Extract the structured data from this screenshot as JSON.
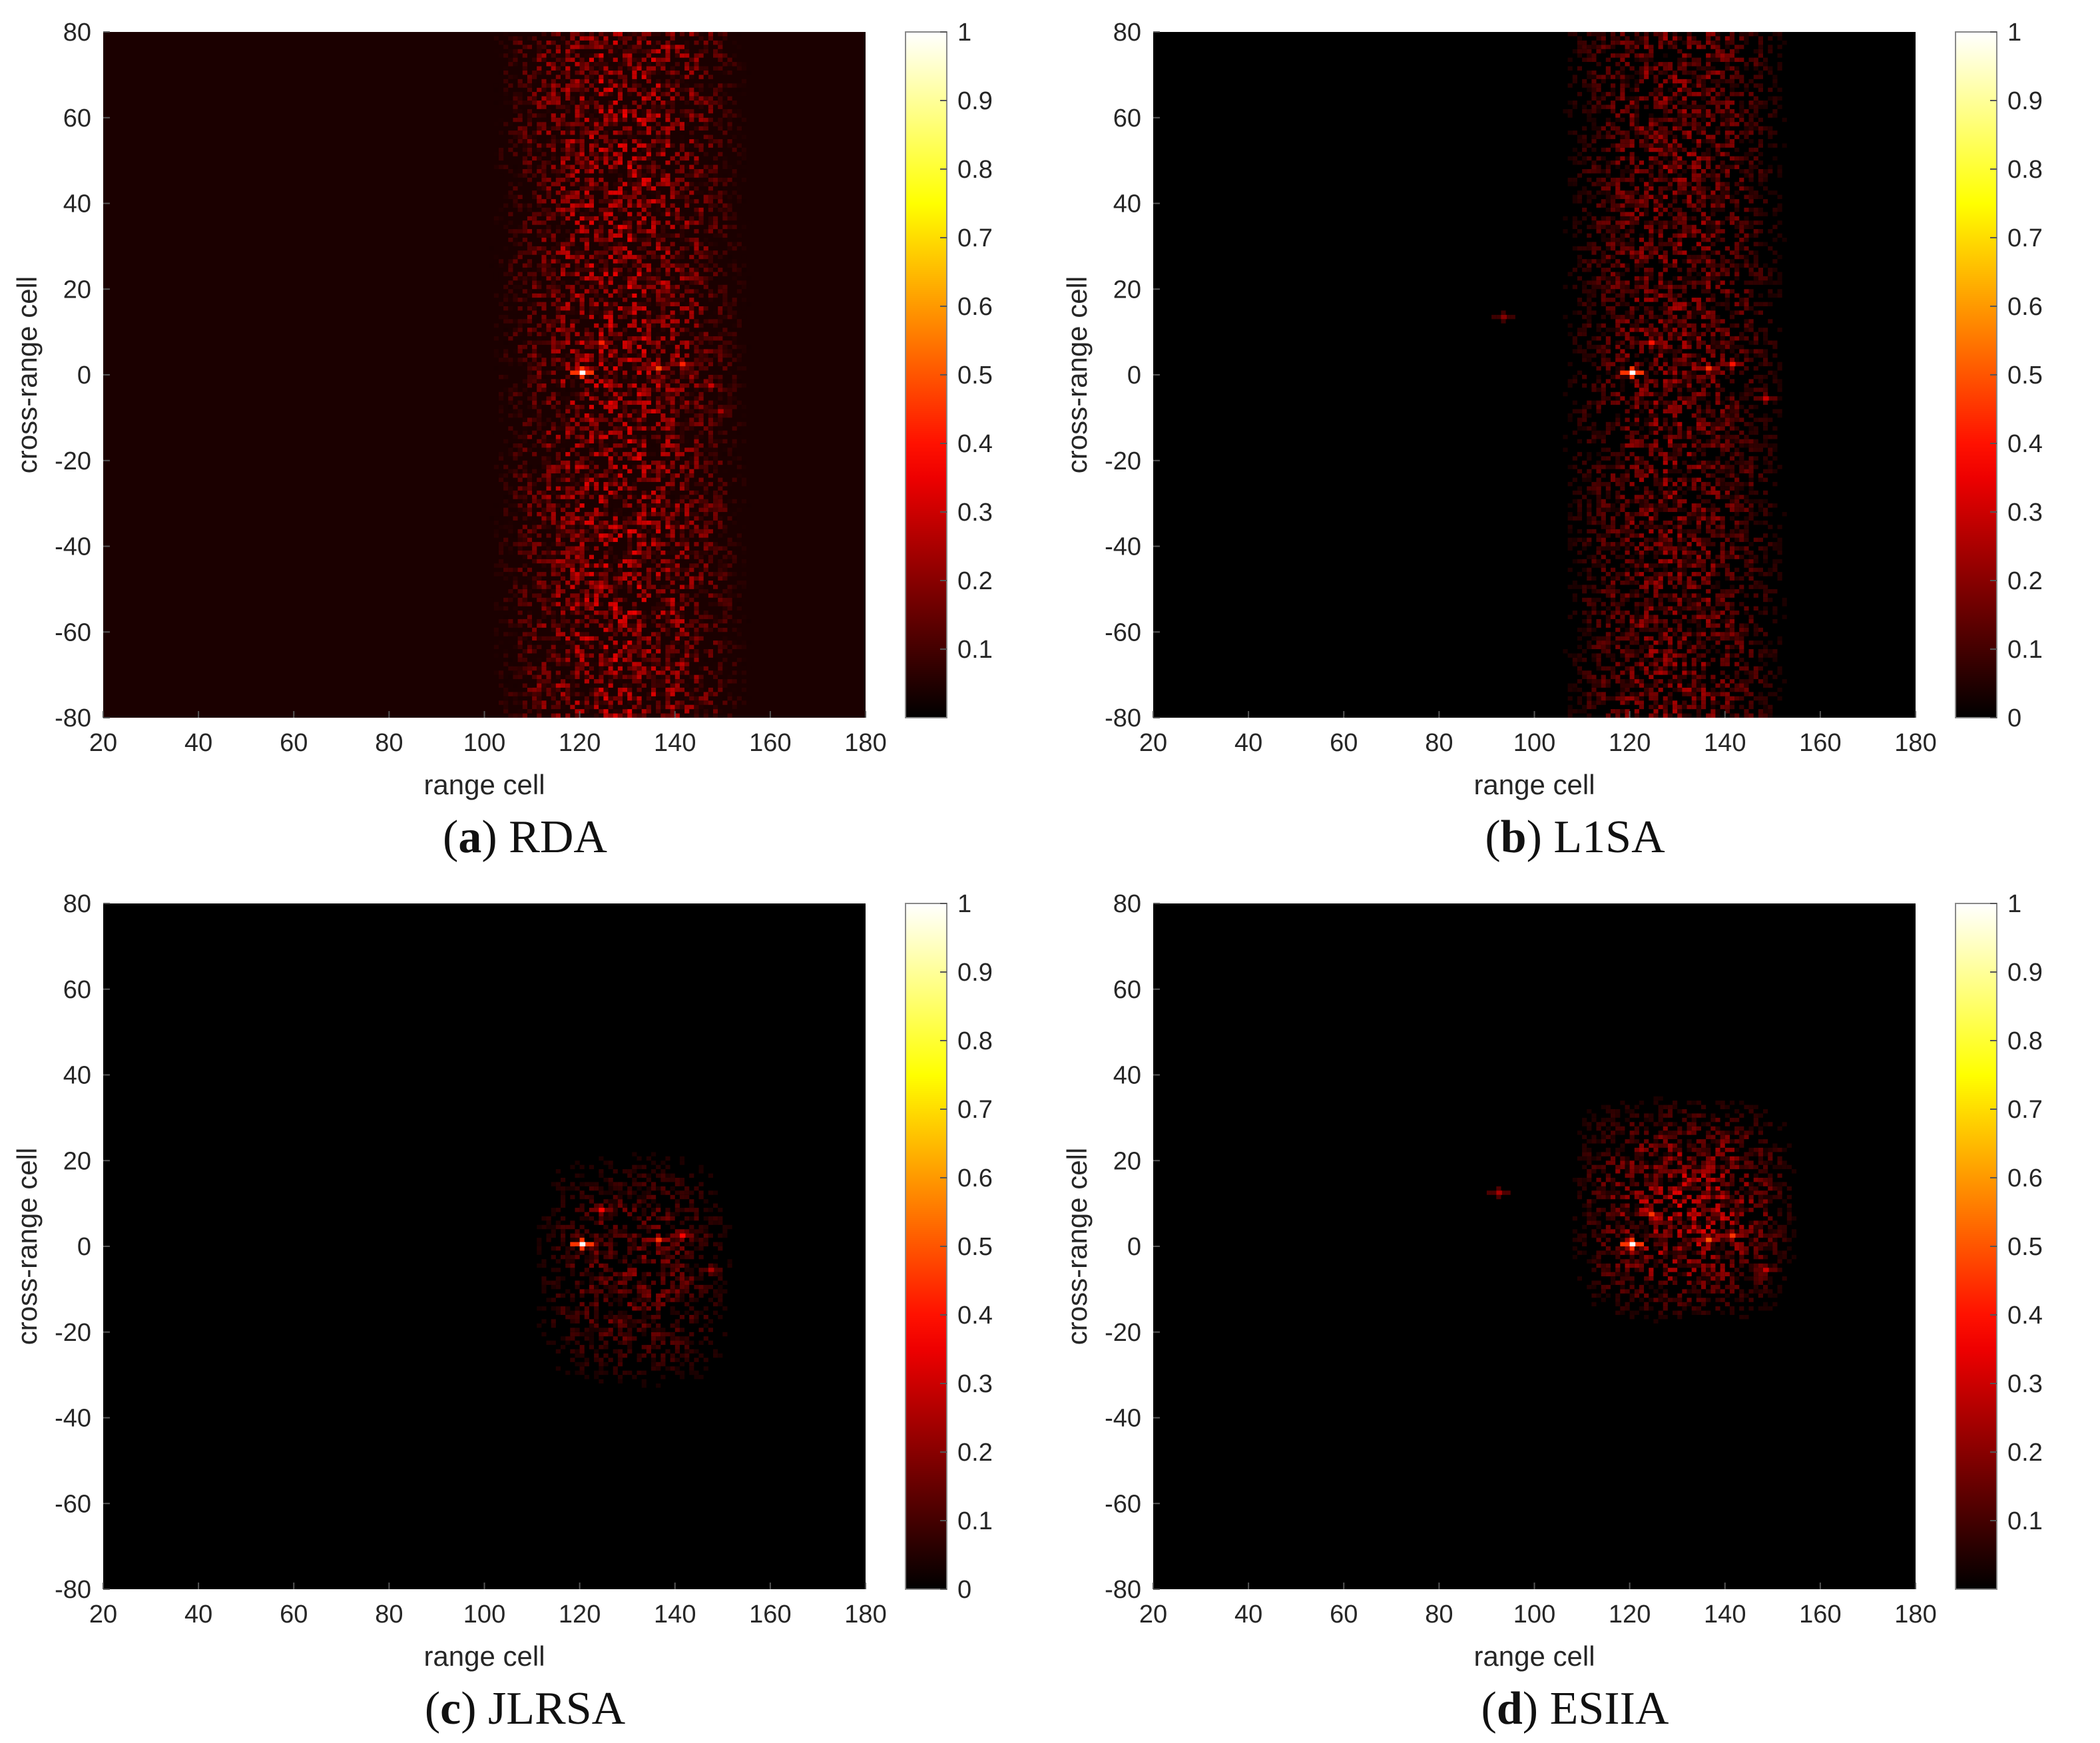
{
  "chart_data": [
    {
      "type": "heatmap",
      "letter": "a",
      "method": "RDA",
      "xlabel": "range cell",
      "ylabel": "cross-range cell",
      "xlim": [
        20,
        180
      ],
      "ylim": [
        -80,
        80
      ],
      "xticks": [
        20,
        40,
        60,
        80,
        100,
        120,
        140,
        160,
        180
      ],
      "yticks": [
        -80,
        -60,
        -40,
        -20,
        0,
        20,
        40,
        60,
        80
      ],
      "colorbar": {
        "colormap": "hot",
        "range": [
          0,
          1
        ],
        "ticks": [
          "0.1",
          "0.2",
          "0.3",
          "0.4",
          "0.5",
          "0.6",
          "0.7",
          "0.8",
          "0.9",
          "1"
        ]
      },
      "grid": false,
      "noise": {
        "background": 0.04,
        "band_x": [
          104,
          152
        ],
        "band_level": 0.22,
        "y_extent": [
          -80,
          80
        ]
      },
      "scatterers": [
        {
          "x": 120,
          "y": 0,
          "amp": 1.0
        },
        {
          "x": 124,
          "y": 7,
          "amp": 0.42
        },
        {
          "x": 136,
          "y": 1,
          "amp": 0.48
        },
        {
          "x": 141,
          "y": 2,
          "amp": 0.42
        },
        {
          "x": 147,
          "y": -3,
          "amp": 0.3
        },
        {
          "x": 149,
          "y": -9,
          "amp": 0.25
        }
      ]
    },
    {
      "type": "heatmap",
      "letter": "b",
      "method": "L1SA",
      "xlabel": "range cell",
      "ylabel": "cross-range cell",
      "xlim": [
        20,
        180
      ],
      "ylim": [
        -80,
        80
      ],
      "xticks": [
        20,
        40,
        60,
        80,
        100,
        120,
        140,
        160,
        180
      ],
      "yticks": [
        -80,
        -60,
        -40,
        -20,
        0,
        20,
        40,
        60,
        80
      ],
      "colorbar": {
        "colormap": "hot",
        "range": [
          0,
          1
        ],
        "ticks": [
          "0",
          "0.1",
          "0.2",
          "0.3",
          "0.4",
          "0.5",
          "0.6",
          "0.7",
          "0.8",
          "0.9",
          "1"
        ]
      },
      "grid": false,
      "noise": {
        "background": 0.0,
        "band_x": [
          108,
          150
        ],
        "band_level": 0.16,
        "y_extent": [
          -80,
          80
        ]
      },
      "scatterers": [
        {
          "x": 120,
          "y": 0,
          "amp": 1.0
        },
        {
          "x": 124,
          "y": 7,
          "amp": 0.4
        },
        {
          "x": 136,
          "y": 1,
          "amp": 0.45
        },
        {
          "x": 141,
          "y": 2,
          "amp": 0.4
        },
        {
          "x": 148,
          "y": -6,
          "amp": 0.3
        },
        {
          "x": 93,
          "y": 13,
          "amp": 0.2
        }
      ]
    },
    {
      "type": "heatmap",
      "letter": "c",
      "method": "JLRSA",
      "xlabel": "range cell",
      "ylabel": "cross-range cell",
      "xlim": [
        20,
        180
      ],
      "ylim": [
        -80,
        80
      ],
      "xticks": [
        20,
        40,
        60,
        80,
        100,
        120,
        140,
        160,
        180
      ],
      "yticks": [
        -80,
        -60,
        -40,
        -20,
        0,
        20,
        40,
        60,
        80
      ],
      "colorbar": {
        "colormap": "hot",
        "range": [
          0,
          1
        ],
        "ticks": [
          "0",
          "0.1",
          "0.2",
          "0.3",
          "0.4",
          "0.5",
          "0.6",
          "0.7",
          "0.8",
          "0.9",
          "1"
        ]
      },
      "grid": false,
      "noise": {
        "background": 0.0,
        "band_x": [
          112,
          150
        ],
        "band_level": 0.14,
        "y_extent": [
          -36,
          24
        ]
      },
      "scatterers": [
        {
          "x": 120,
          "y": 0,
          "amp": 1.0
        },
        {
          "x": 124,
          "y": 8,
          "amp": 0.38
        },
        {
          "x": 136,
          "y": 1,
          "amp": 0.45
        },
        {
          "x": 141,
          "y": 2,
          "amp": 0.38
        },
        {
          "x": 147,
          "y": -6,
          "amp": 0.25
        }
      ]
    },
    {
      "type": "heatmap",
      "letter": "d",
      "method": "ESIIA",
      "xlabel": "range cell",
      "ylabel": "cross-range cell",
      "xlim": [
        20,
        180
      ],
      "ylim": [
        -80,
        80
      ],
      "xticks": [
        20,
        40,
        60,
        80,
        100,
        120,
        140,
        160,
        180
      ],
      "yticks": [
        -80,
        -60,
        -40,
        -20,
        0,
        20,
        40,
        60,
        80
      ],
      "colorbar": {
        "colormap": "hot",
        "range": [
          0,
          1
        ],
        "ticks": [
          "0.1",
          "0.2",
          "0.3",
          "0.4",
          "0.5",
          "0.6",
          "0.7",
          "0.8",
          "0.9",
          "1"
        ]
      },
      "grid": false,
      "noise": {
        "background": 0.0,
        "band_x": [
          110,
          152
        ],
        "band_level": 0.22,
        "y_extent": [
          -20,
          36
        ]
      },
      "scatterers": [
        {
          "x": 120,
          "y": 0,
          "amp": 1.0
        },
        {
          "x": 124,
          "y": 7,
          "amp": 0.45
        },
        {
          "x": 136,
          "y": 1,
          "amp": 0.5
        },
        {
          "x": 141,
          "y": 2,
          "amp": 0.45
        },
        {
          "x": 148,
          "y": -6,
          "amp": 0.3
        },
        {
          "x": 92,
          "y": 12,
          "amp": 0.25
        }
      ]
    }
  ]
}
